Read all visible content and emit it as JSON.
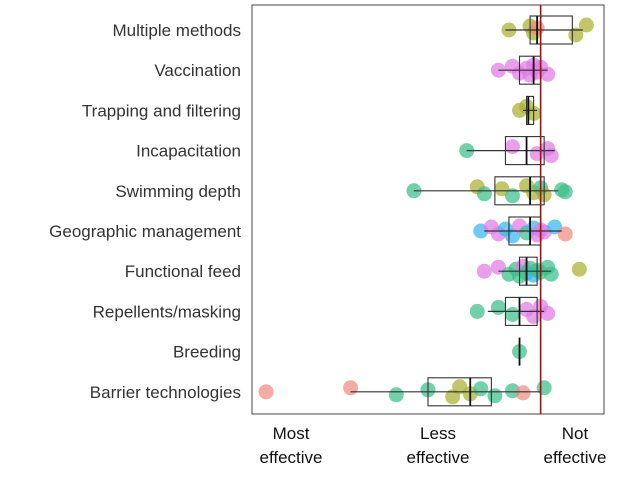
{
  "chart_data": {
    "type": "box-strip",
    "title": "",
    "xlabel": "",
    "ylabel": "",
    "x_tick_labels": [
      {
        "lines": [
          "Most",
          "effective"
        ]
      },
      {
        "lines": [
          "Less",
          "effective"
        ]
      },
      {
        "lines": [
          "Not",
          "effective"
        ]
      }
    ],
    "xlim": [
      0,
      1
    ],
    "reference_line": {
      "x": 0.82,
      "color": "#8b1a1a"
    },
    "grid": false,
    "legend": "none",
    "point_colors": {
      "green": "#3cbf8a",
      "olive": "#a9b12f",
      "magenta": "#e27ae6",
      "blue": "#36b7f0",
      "salmon": "#f08a80"
    },
    "box_color": "#333333",
    "categories": [
      {
        "name": "Multiple methods",
        "box": {
          "whisker_low": 0.72,
          "q1": 0.79,
          "median": 0.81,
          "q3": 0.91,
          "whisker_high": 0.94
        },
        "points": [
          {
            "x": 0.73,
            "color": "olive"
          },
          {
            "x": 0.79,
            "color": "olive"
          },
          {
            "x": 0.8,
            "color": "olive"
          },
          {
            "x": 0.81,
            "color": "salmon"
          },
          {
            "x": 0.92,
            "color": "olive"
          },
          {
            "x": 0.95,
            "color": "olive"
          }
        ]
      },
      {
        "name": "Vaccination",
        "box": {
          "whisker_low": 0.7,
          "q1": 0.76,
          "median": 0.8,
          "q3": 0.82,
          "whisker_high": 0.84
        },
        "points": [
          {
            "x": 0.7,
            "color": "magenta"
          },
          {
            "x": 0.74,
            "color": "magenta"
          },
          {
            "x": 0.76,
            "color": "magenta"
          },
          {
            "x": 0.78,
            "color": "magenta"
          },
          {
            "x": 0.79,
            "color": "magenta"
          },
          {
            "x": 0.8,
            "color": "magenta"
          },
          {
            "x": 0.81,
            "color": "magenta"
          },
          {
            "x": 0.82,
            "color": "magenta"
          },
          {
            "x": 0.84,
            "color": "magenta"
          }
        ]
      },
      {
        "name": "Trapping and filtering",
        "box": {
          "whisker_low": 0.77,
          "q1": 0.78,
          "median": 0.785,
          "q3": 0.8,
          "whisker_high": 0.81
        },
        "points": [
          {
            "x": 0.76,
            "color": "olive"
          },
          {
            "x": 0.78,
            "color": "olive"
          },
          {
            "x": 0.8,
            "color": "olive"
          }
        ]
      },
      {
        "name": "Incapacitation",
        "box": {
          "whisker_low": 0.61,
          "q1": 0.72,
          "median": 0.78,
          "q3": 0.83,
          "whisker_high": 0.86
        },
        "points": [
          {
            "x": 0.61,
            "color": "green"
          },
          {
            "x": 0.74,
            "color": "magenta"
          },
          {
            "x": 0.81,
            "color": "magenta"
          },
          {
            "x": 0.84,
            "color": "magenta"
          },
          {
            "x": 0.85,
            "color": "magenta"
          }
        ]
      },
      {
        "name": "Swimming depth",
        "box": {
          "whisker_low": 0.46,
          "q1": 0.69,
          "median": 0.79,
          "q3": 0.83,
          "whisker_high": 0.87
        },
        "points": [
          {
            "x": 0.46,
            "color": "green"
          },
          {
            "x": 0.64,
            "color": "olive"
          },
          {
            "x": 0.66,
            "color": "green"
          },
          {
            "x": 0.71,
            "color": "olive"
          },
          {
            "x": 0.74,
            "color": "green"
          },
          {
            "x": 0.78,
            "color": "olive"
          },
          {
            "x": 0.8,
            "color": "olive"
          },
          {
            "x": 0.82,
            "color": "green"
          },
          {
            "x": 0.83,
            "color": "olive"
          },
          {
            "x": 0.88,
            "color": "green"
          },
          {
            "x": 0.89,
            "color": "green"
          }
        ]
      },
      {
        "name": "Geographic management",
        "box": {
          "whisker_low": 0.66,
          "q1": 0.73,
          "median": 0.79,
          "q3": 0.82,
          "whisker_high": 0.88
        },
        "points": [
          {
            "x": 0.65,
            "color": "blue"
          },
          {
            "x": 0.68,
            "color": "magenta"
          },
          {
            "x": 0.7,
            "color": "magenta"
          },
          {
            "x": 0.72,
            "color": "blue"
          },
          {
            "x": 0.74,
            "color": "blue"
          },
          {
            "x": 0.76,
            "color": "magenta"
          },
          {
            "x": 0.78,
            "color": "green"
          },
          {
            "x": 0.8,
            "color": "blue"
          },
          {
            "x": 0.81,
            "color": "magenta"
          },
          {
            "x": 0.82,
            "color": "magenta"
          },
          {
            "x": 0.83,
            "color": "magenta"
          },
          {
            "x": 0.86,
            "color": "blue"
          },
          {
            "x": 0.89,
            "color": "salmon"
          }
        ]
      },
      {
        "name": "Functional feed",
        "box": {
          "whisker_low": 0.7,
          "q1": 0.76,
          "median": 0.78,
          "q3": 0.81,
          "whisker_high": 0.85
        },
        "points": [
          {
            "x": 0.66,
            "color": "magenta"
          },
          {
            "x": 0.7,
            "color": "magenta"
          },
          {
            "x": 0.73,
            "color": "green"
          },
          {
            "x": 0.75,
            "color": "green"
          },
          {
            "x": 0.76,
            "color": "green"
          },
          {
            "x": 0.77,
            "color": "magenta"
          },
          {
            "x": 0.78,
            "color": "green"
          },
          {
            "x": 0.79,
            "color": "green"
          },
          {
            "x": 0.8,
            "color": "blue"
          },
          {
            "x": 0.81,
            "color": "green"
          },
          {
            "x": 0.82,
            "color": "green"
          },
          {
            "x": 0.84,
            "color": "green"
          },
          {
            "x": 0.85,
            "color": "green"
          },
          {
            "x": 0.93,
            "color": "olive"
          }
        ]
      },
      {
        "name": "Repellents/masking",
        "box": {
          "whisker_low": 0.67,
          "q1": 0.72,
          "median": 0.76,
          "q3": 0.81,
          "whisker_high": 0.83
        },
        "points": [
          {
            "x": 0.64,
            "color": "green"
          },
          {
            "x": 0.7,
            "color": "green"
          },
          {
            "x": 0.74,
            "color": "green"
          },
          {
            "x": 0.78,
            "color": "magenta"
          },
          {
            "x": 0.8,
            "color": "magenta"
          },
          {
            "x": 0.82,
            "color": "magenta"
          },
          {
            "x": 0.84,
            "color": "magenta"
          }
        ]
      },
      {
        "name": "Breeding",
        "box": {
          "whisker_low": 0.76,
          "q1": 0.76,
          "median": 0.76,
          "q3": 0.76,
          "whisker_high": 0.76
        },
        "points": [
          {
            "x": 0.76,
            "color": "green"
          }
        ]
      },
      {
        "name": "Barrier technologies",
        "box": {
          "whisker_low": 0.28,
          "q1": 0.5,
          "median": 0.62,
          "q3": 0.68,
          "whisker_high": 0.82
        },
        "points": [
          {
            "x": 0.04,
            "color": "salmon"
          },
          {
            "x": 0.28,
            "color": "salmon"
          },
          {
            "x": 0.41,
            "color": "green"
          },
          {
            "x": 0.5,
            "color": "green"
          },
          {
            "x": 0.57,
            "color": "olive"
          },
          {
            "x": 0.59,
            "color": "olive"
          },
          {
            "x": 0.62,
            "color": "olive"
          },
          {
            "x": 0.65,
            "color": "green"
          },
          {
            "x": 0.69,
            "color": "green"
          },
          {
            "x": 0.74,
            "color": "green"
          },
          {
            "x": 0.77,
            "color": "salmon"
          },
          {
            "x": 0.83,
            "color": "green"
          }
        ]
      }
    ]
  }
}
